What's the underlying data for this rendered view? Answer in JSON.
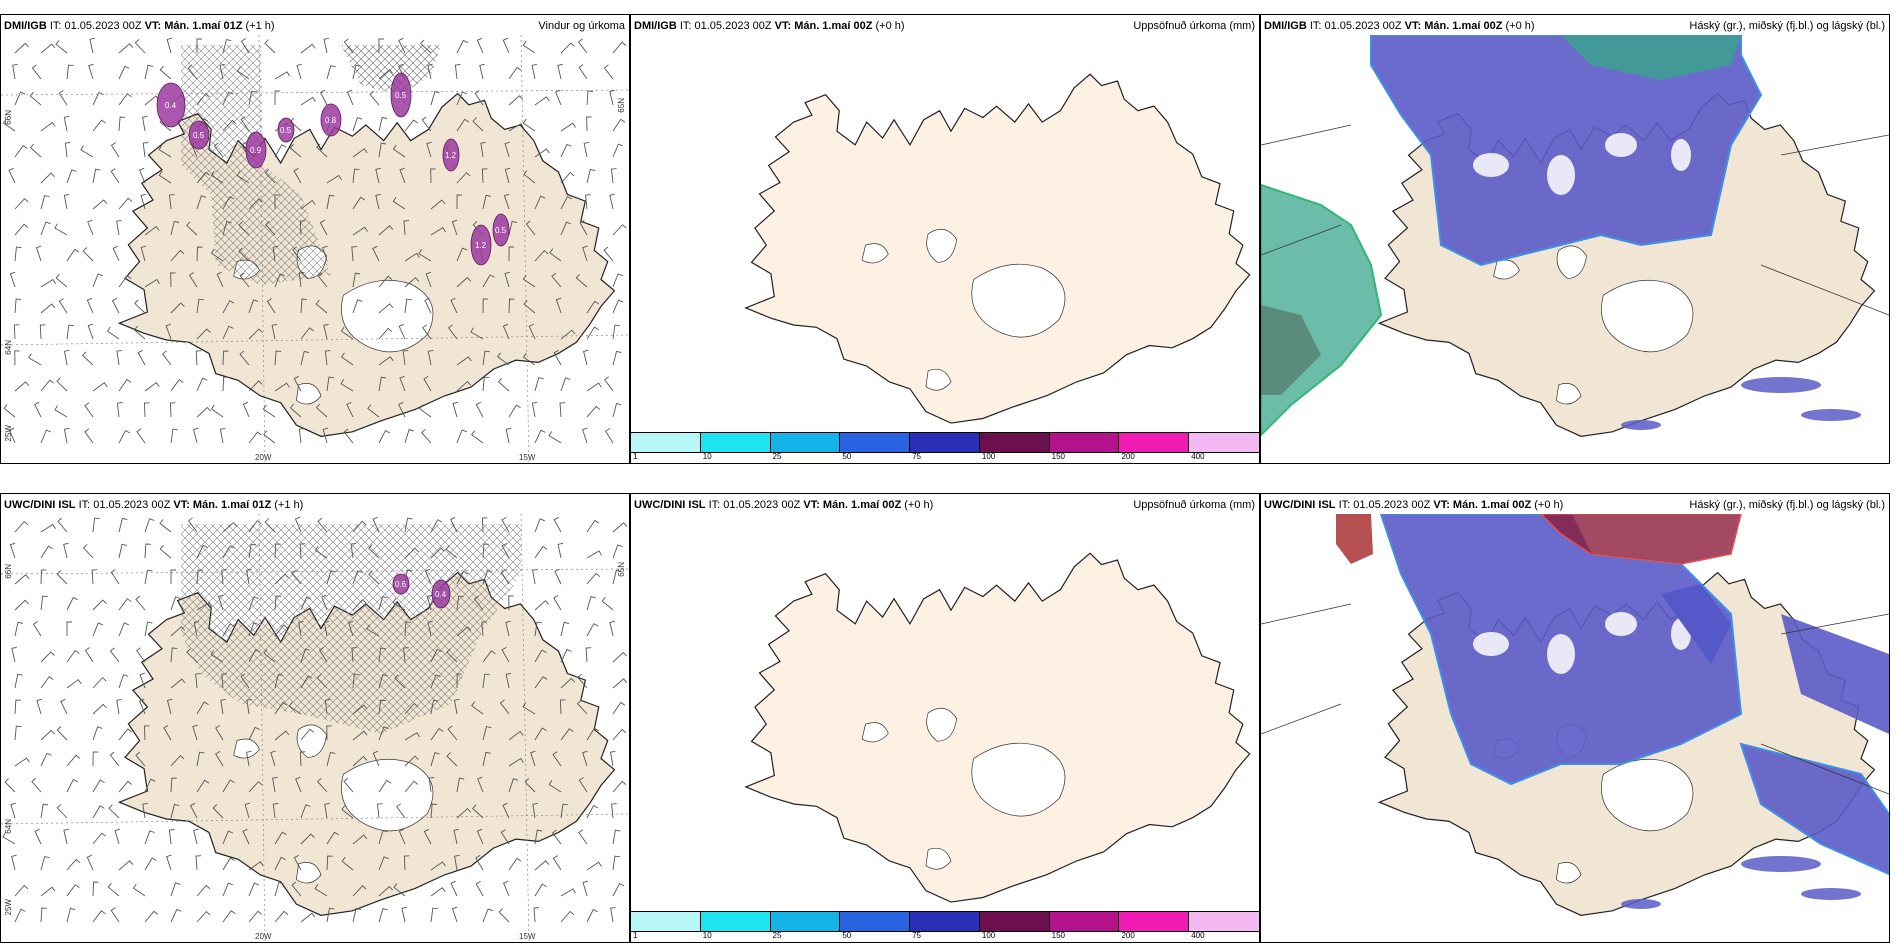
{
  "colors": {
    "land": "#f1e5d4",
    "land_light": "#fdf1e4",
    "sea": "#ffffff",
    "purple_precip": "#9b3a9f",
    "cloud_high": "#5b5bc8",
    "cloud_mid": "#3aa58b",
    "cloud_low": "#8c1c3a"
  },
  "rows": [
    {
      "model": "DMI/IGB",
      "panels": [
        {
          "kind": "wind",
          "title_model": "DMI/IGB",
          "title_it": "IT: 01.05.2023 00Z",
          "title_vt": "VT: Mán. 1.maí 01Z",
          "title_lead": "(+1 h)",
          "right_label": "Vindur og úrkoma",
          "lat_labels": [
            "66N",
            "65N",
            "64N",
            "25W"
          ],
          "lon_labels": [
            "20W",
            "15W"
          ],
          "precip_values": [
            "0.4",
            "0.5",
            "0.9",
            "0.5",
            "0.8",
            "0.5",
            "1.2",
            "1.2",
            "0.5"
          ]
        },
        {
          "kind": "accum",
          "title_model": "DMI/IGB",
          "title_it": "IT: 01.05.2023 00Z",
          "title_vt": "VT: Mán. 1.maí 00Z",
          "title_lead": "(+0 h)",
          "right_label": "Uppsöfnuð úrkoma (mm)"
        },
        {
          "kind": "cloud",
          "title_model": "DMI/IGB",
          "title_it": "IT: 01.05.2023 00Z",
          "title_vt": "VT: Mán. 1.maí 00Z",
          "title_lead": "(+0 h)",
          "right_label": "Háský (gr.), miðský (fj.bl.) og lágský (bl.)"
        }
      ]
    },
    {
      "model": "UWC/DINI ISL",
      "panels": [
        {
          "kind": "wind",
          "title_model": "UWC/DINI ISL",
          "title_it": "IT: 01.05.2023 00Z",
          "title_vt": "VT: Mán. 1.maí 01Z",
          "title_lead": "(+1 h)",
          "right_label": "",
          "lat_labels": [
            "66N",
            "65N",
            "64N",
            "25W"
          ],
          "lon_labels": [
            "20W",
            "15W"
          ],
          "precip_values": [
            "0.6",
            "0.4"
          ]
        },
        {
          "kind": "accum",
          "title_model": "UWC/DINI ISL",
          "title_it": "IT: 01.05.2023 00Z",
          "title_vt": "VT: Mán. 1.maí 00Z",
          "title_lead": "(+0 h)",
          "right_label": "Uppsöfnuð úrkoma (mm)"
        },
        {
          "kind": "cloud",
          "title_model": "UWC/DINI ISL",
          "title_it": "IT: 01.05.2023 00Z",
          "title_vt": "VT: Mán. 1.maí 00Z",
          "title_lead": "(+0 h)",
          "right_label": "Háský (gr.), miðský (fj.bl.) og lágský (bl.)"
        }
      ]
    }
  ],
  "colorbar": {
    "labels": [
      "1",
      "10",
      "25",
      "50",
      "75",
      "100",
      "150",
      "200",
      "400"
    ],
    "colors": [
      "#b7f7f7",
      "#1ee3f0",
      "#14b4e8",
      "#2a63e0",
      "#2a2fb8",
      "#6b0f4f",
      "#b3128b",
      "#f01cb3",
      "#f4b8f2"
    ]
  }
}
